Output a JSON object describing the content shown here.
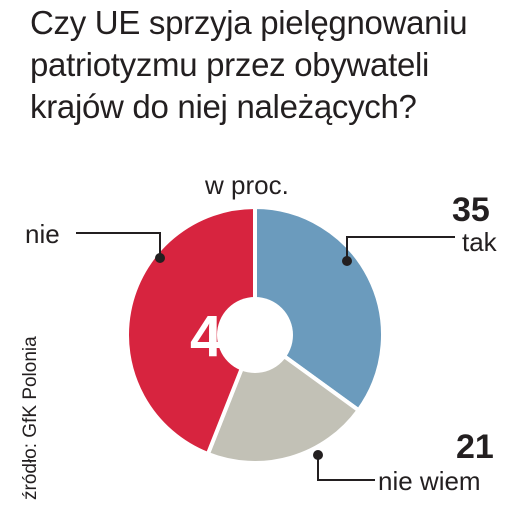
{
  "title": "Czy UE sprzyja pielęgnowaniu patriotyzmu przez obywateli krajów do niej należących?",
  "unit_label": "w proc.",
  "source": "źródło: GfK Polonia",
  "colors": {
    "tak": "#6b9bbd",
    "nie_wiem": "#c2c1b6",
    "nie": "#d7243f"
  },
  "chart_data": {
    "type": "pie",
    "title": "Czy UE sprzyja pielęgnowaniu patriotyzmu przez obywateli krajów do niej należących?",
    "unit": "w proc.",
    "categories": [
      "tak",
      "nie wiem",
      "nie"
    ],
    "values": [
      35,
      21,
      44
    ],
    "donut": true
  }
}
